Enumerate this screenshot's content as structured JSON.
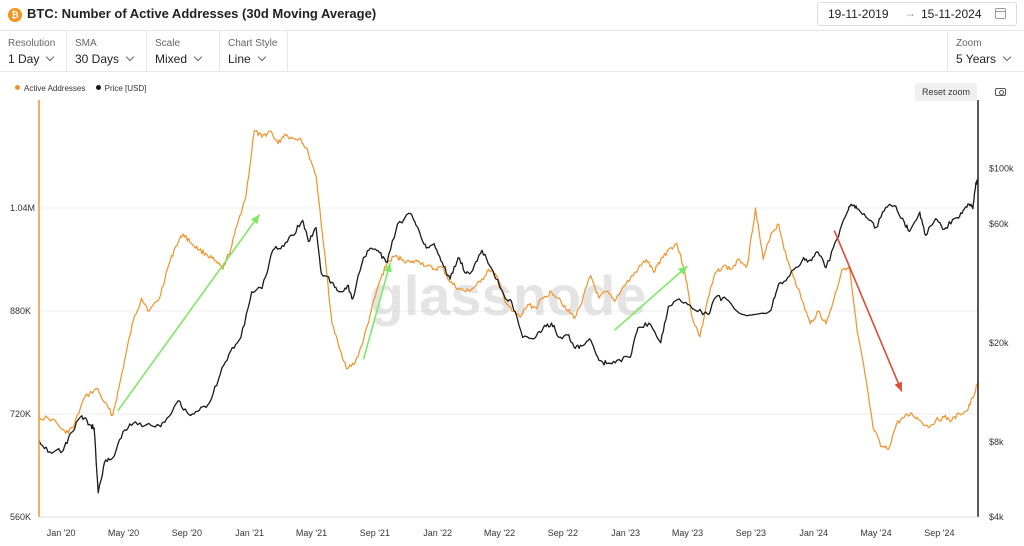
{
  "header": {
    "title": "BTC: Number of Active Addresses (30d Moving Average)",
    "icon": "bitcoin-icon",
    "date_from": "19-11-2019",
    "date_arrow": "→",
    "date_to": "15-11-2024"
  },
  "controls": {
    "resolution": {
      "label": "Resolution",
      "value": "1 Day"
    },
    "sma": {
      "label": "SMA",
      "value": "30 Days"
    },
    "scale": {
      "label": "Scale",
      "value": "Mixed"
    },
    "chart_style": {
      "label": "Chart Style",
      "value": "Line"
    },
    "zoom": {
      "label": "Zoom",
      "value": "5 Years"
    }
  },
  "toolbar": {
    "reset_zoom": "Reset zoom"
  },
  "watermark": "glassnode",
  "colors": {
    "active_addresses": "#f0932b",
    "price": "#1a1a1a",
    "arrow_up": "#7ee864",
    "arrow_down": "#e04a35"
  },
  "chart_data": {
    "type": "line",
    "title": "BTC: Number of Active Addresses (30d Moving Average)",
    "x_range": [
      "2019-11-19",
      "2024-11-15"
    ],
    "x_ticks": [
      "Jan '20",
      "May '20",
      "Sep '20",
      "Jan '21",
      "May '21",
      "Sep '21",
      "Jan '22",
      "May '22",
      "Sep '22",
      "Jan '23",
      "May '23",
      "Sep '23",
      "Jan '24",
      "May '24",
      "Sep '24"
    ],
    "left_axis": {
      "ticks": [
        "560K",
        "720K",
        "880K",
        "1.04M"
      ],
      "ylim": [
        560000,
        1200000
      ]
    },
    "right_axis": {
      "scale": "log",
      "ticks": [
        "$4k",
        "$8k",
        "$20k",
        "$60k",
        "$100k"
      ],
      "ylim": [
        4000,
        180000
      ]
    },
    "legend_position": "top-left",
    "series": [
      {
        "name": "Active Addresses",
        "axis": "left",
        "points": [
          [
            "2019-11-19",
            715000
          ],
          [
            "2019-12-15",
            712000
          ],
          [
            "2020-01-10",
            690000
          ],
          [
            "2020-01-25",
            700000
          ],
          [
            "2020-02-15",
            745000
          ],
          [
            "2020-03-10",
            760000
          ],
          [
            "2020-03-25",
            738000
          ],
          [
            "2020-04-10",
            718000
          ],
          [
            "2020-04-22",
            760000
          ],
          [
            "2020-05-05",
            810000
          ],
          [
            "2020-05-20",
            865000
          ],
          [
            "2020-06-05",
            900000
          ],
          [
            "2020-06-20",
            880000
          ],
          [
            "2020-07-10",
            900000
          ],
          [
            "2020-07-25",
            945000
          ],
          [
            "2020-08-10",
            980000
          ],
          [
            "2020-08-25",
            1000000
          ],
          [
            "2020-09-10",
            985000
          ],
          [
            "2020-09-25",
            975000
          ],
          [
            "2020-10-10",
            968000
          ],
          [
            "2020-10-25",
            958000
          ],
          [
            "2020-11-10",
            945000
          ],
          [
            "2020-11-25",
            975000
          ],
          [
            "2020-12-10",
            1020000
          ],
          [
            "2020-12-25",
            1060000
          ],
          [
            "2021-01-10",
            1160000
          ],
          [
            "2021-01-25",
            1150000
          ],
          [
            "2021-02-10",
            1160000
          ],
          [
            "2021-02-25",
            1140000
          ],
          [
            "2021-03-10",
            1155000
          ],
          [
            "2021-03-25",
            1148000
          ],
          [
            "2021-04-10",
            1148000
          ],
          [
            "2021-04-25",
            1125000
          ],
          [
            "2021-05-10",
            1090000
          ],
          [
            "2021-05-25",
            980000
          ],
          [
            "2021-06-10",
            860000
          ],
          [
            "2021-06-25",
            820000
          ],
          [
            "2021-07-10",
            790000
          ],
          [
            "2021-07-25",
            800000
          ],
          [
            "2021-08-10",
            835000
          ],
          [
            "2021-08-25",
            880000
          ],
          [
            "2021-09-10",
            925000
          ],
          [
            "2021-09-25",
            955000
          ],
          [
            "2021-10-10",
            965000
          ],
          [
            "2021-10-25",
            960000
          ],
          [
            "2021-11-10",
            955000
          ],
          [
            "2021-11-25",
            958000
          ],
          [
            "2021-12-10",
            950000
          ],
          [
            "2021-12-25",
            945000
          ],
          [
            "2022-01-10",
            948000
          ],
          [
            "2022-01-25",
            925000
          ],
          [
            "2022-02-10",
            915000
          ],
          [
            "2022-02-25",
            910000
          ],
          [
            "2022-03-10",
            915000
          ],
          [
            "2022-03-25",
            925000
          ],
          [
            "2022-04-10",
            945000
          ],
          [
            "2022-04-25",
            935000
          ],
          [
            "2022-05-10",
            900000
          ],
          [
            "2022-05-25",
            880000
          ],
          [
            "2022-06-10",
            870000
          ],
          [
            "2022-06-25",
            890000
          ],
          [
            "2022-07-10",
            885000
          ],
          [
            "2022-07-25",
            900000
          ],
          [
            "2022-08-10",
            910000
          ],
          [
            "2022-08-25",
            900000
          ],
          [
            "2022-09-10",
            880000
          ],
          [
            "2022-09-25",
            870000
          ],
          [
            "2022-10-10",
            900000
          ],
          [
            "2022-10-25",
            935000
          ],
          [
            "2022-11-10",
            900000
          ],
          [
            "2022-11-25",
            910000
          ],
          [
            "2022-12-10",
            895000
          ],
          [
            "2022-12-25",
            915000
          ],
          [
            "2023-01-10",
            930000
          ],
          [
            "2023-01-25",
            945000
          ],
          [
            "2023-02-10",
            960000
          ],
          [
            "2023-02-25",
            940000
          ],
          [
            "2023-03-10",
            960000
          ],
          [
            "2023-03-25",
            975000
          ],
          [
            "2023-04-10",
            985000
          ],
          [
            "2023-04-25",
            945000
          ],
          [
            "2023-05-10",
            870000
          ],
          [
            "2023-05-25",
            840000
          ],
          [
            "2023-06-10",
            900000
          ],
          [
            "2023-06-25",
            940000
          ],
          [
            "2023-07-10",
            950000
          ],
          [
            "2023-07-25",
            945000
          ],
          [
            "2023-08-10",
            960000
          ],
          [
            "2023-08-25",
            950000
          ],
          [
            "2023-09-10",
            1040000
          ],
          [
            "2023-09-25",
            960000
          ],
          [
            "2023-10-10",
            1000000
          ],
          [
            "2023-10-25",
            1015000
          ],
          [
            "2023-11-10",
            960000
          ],
          [
            "2023-11-25",
            930000
          ],
          [
            "2023-12-10",
            895000
          ],
          [
            "2023-12-25",
            860000
          ],
          [
            "2024-01-10",
            880000
          ],
          [
            "2024-01-25",
            860000
          ],
          [
            "2024-02-10",
            900000
          ],
          [
            "2024-02-25",
            945000
          ],
          [
            "2024-03-10",
            950000
          ],
          [
            "2024-03-25",
            850000
          ],
          [
            "2024-04-10",
            780000
          ],
          [
            "2024-04-25",
            700000
          ],
          [
            "2024-05-10",
            670000
          ],
          [
            "2024-05-25",
            665000
          ],
          [
            "2024-06-10",
            705000
          ],
          [
            "2024-06-25",
            715000
          ],
          [
            "2024-07-10",
            720000
          ],
          [
            "2024-07-25",
            710000
          ],
          [
            "2024-08-10",
            700000
          ],
          [
            "2024-08-25",
            710000
          ],
          [
            "2024-09-10",
            715000
          ],
          [
            "2024-09-25",
            710000
          ],
          [
            "2024-10-10",
            720000
          ],
          [
            "2024-10-25",
            725000
          ],
          [
            "2024-11-05",
            745000
          ],
          [
            "2024-11-15",
            770000
          ]
        ]
      },
      {
        "name": "Price [USD]",
        "axis": "right",
        "points": [
          [
            "2019-11-19",
            8100
          ],
          [
            "2019-12-10",
            7300
          ],
          [
            "2020-01-05",
            7400
          ],
          [
            "2020-01-20",
            8700
          ],
          [
            "2020-02-10",
            10200
          ],
          [
            "2020-02-25",
            9400
          ],
          [
            "2020-03-05",
            9100
          ],
          [
            "2020-03-13",
            5000
          ],
          [
            "2020-03-25",
            6600
          ],
          [
            "2020-04-10",
            6900
          ],
          [
            "2020-04-30",
            8800
          ],
          [
            "2020-05-20",
            9500
          ],
          [
            "2020-06-15",
            9400
          ],
          [
            "2020-07-10",
            9300
          ],
          [
            "2020-07-25",
            10000
          ],
          [
            "2020-08-15",
            11700
          ],
          [
            "2020-09-05",
            10300
          ],
          [
            "2020-09-25",
            10700
          ],
          [
            "2020-10-15",
            11500
          ],
          [
            "2020-11-05",
            15000
          ],
          [
            "2020-11-25",
            18500
          ],
          [
            "2020-12-15",
            21000
          ],
          [
            "2021-01-05",
            32000
          ],
          [
            "2021-01-25",
            33000
          ],
          [
            "2021-02-15",
            47000
          ],
          [
            "2021-03-05",
            49000
          ],
          [
            "2021-03-25",
            54000
          ],
          [
            "2021-04-14",
            62000
          ],
          [
            "2021-04-25",
            51000
          ],
          [
            "2021-05-10",
            58000
          ],
          [
            "2021-05-20",
            38000
          ],
          [
            "2021-06-10",
            35000
          ],
          [
            "2021-06-25",
            32000
          ],
          [
            "2021-07-10",
            34000
          ],
          [
            "2021-07-20",
            30000
          ],
          [
            "2021-08-10",
            44000
          ],
          [
            "2021-08-25",
            48000
          ],
          [
            "2021-09-10",
            46000
          ],
          [
            "2021-09-25",
            42000
          ],
          [
            "2021-10-15",
            60000
          ],
          [
            "2021-11-10",
            66000
          ],
          [
            "2021-11-25",
            57000
          ],
          [
            "2021-12-10",
            48000
          ],
          [
            "2021-12-25",
            50000
          ],
          [
            "2022-01-10",
            42000
          ],
          [
            "2022-01-25",
            36000
          ],
          [
            "2022-02-10",
            44000
          ],
          [
            "2022-02-25",
            38000
          ],
          [
            "2022-03-10",
            39000
          ],
          [
            "2022-03-28",
            47000
          ],
          [
            "2022-04-15",
            40000
          ],
          [
            "2022-05-10",
            31000
          ],
          [
            "2022-05-25",
            29000
          ],
          [
            "2022-06-15",
            21000
          ],
          [
            "2022-07-10",
            21000
          ],
          [
            "2022-07-25",
            23000
          ],
          [
            "2022-08-10",
            24000
          ],
          [
            "2022-08-25",
            21000
          ],
          [
            "2022-09-10",
            21500
          ],
          [
            "2022-09-25",
            19000
          ],
          [
            "2022-10-10",
            19500
          ],
          [
            "2022-10-25",
            20500
          ],
          [
            "2022-11-10",
            17000
          ],
          [
            "2022-11-25",
            16500
          ],
          [
            "2022-12-15",
            17000
          ],
          [
            "2023-01-10",
            17500
          ],
          [
            "2023-01-25",
            23000
          ],
          [
            "2023-02-15",
            24000
          ],
          [
            "2023-03-10",
            20000
          ],
          [
            "2023-03-25",
            28000
          ],
          [
            "2023-04-15",
            30000
          ],
          [
            "2023-05-10",
            27500
          ],
          [
            "2023-06-10",
            26000
          ],
          [
            "2023-06-25",
            30500
          ],
          [
            "2023-07-15",
            30000
          ],
          [
            "2023-08-15",
            26000
          ],
          [
            "2023-09-10",
            26000
          ],
          [
            "2023-10-10",
            27000
          ],
          [
            "2023-10-25",
            34500
          ],
          [
            "2023-11-15",
            37000
          ],
          [
            "2023-12-10",
            43000
          ],
          [
            "2023-12-25",
            43000
          ],
          [
            "2024-01-10",
            46000
          ],
          [
            "2024-01-25",
            40000
          ],
          [
            "2024-02-15",
            52000
          ],
          [
            "2024-03-05",
            66000
          ],
          [
            "2024-03-14",
            72000
          ],
          [
            "2024-03-25",
            69000
          ],
          [
            "2024-04-15",
            63000
          ],
          [
            "2024-05-01",
            58000
          ],
          [
            "2024-05-20",
            70000
          ],
          [
            "2024-06-05",
            71000
          ],
          [
            "2024-06-25",
            61000
          ],
          [
            "2024-07-05",
            56000
          ],
          [
            "2024-07-25",
            67000
          ],
          [
            "2024-08-05",
            54000
          ],
          [
            "2024-08-25",
            63000
          ],
          [
            "2024-09-10",
            57000
          ],
          [
            "2024-09-30",
            63000
          ],
          [
            "2024-10-15",
            66000
          ],
          [
            "2024-10-29",
            72000
          ],
          [
            "2024-11-05",
            69000
          ],
          [
            "2024-11-11",
            88000
          ],
          [
            "2024-11-15",
            90000
          ]
        ]
      }
    ],
    "annotations": [
      {
        "type": "arrow",
        "color": "green",
        "from": [
          "2020-04-20",
          725000
        ],
        "to": [
          "2021-01-20",
          1030000
        ]
      },
      {
        "type": "arrow",
        "color": "green",
        "from": [
          "2021-08-10",
          805000
        ],
        "to": [
          "2021-10-01",
          955000
        ]
      },
      {
        "type": "arrow",
        "color": "green",
        "from": [
          "2022-12-10",
          850000
        ],
        "to": [
          "2023-05-01",
          950000
        ]
      },
      {
        "type": "arrow",
        "color": "red",
        "from": [
          "2024-02-10",
          1005000
        ],
        "to": [
          "2024-06-20",
          755000
        ]
      }
    ]
  }
}
